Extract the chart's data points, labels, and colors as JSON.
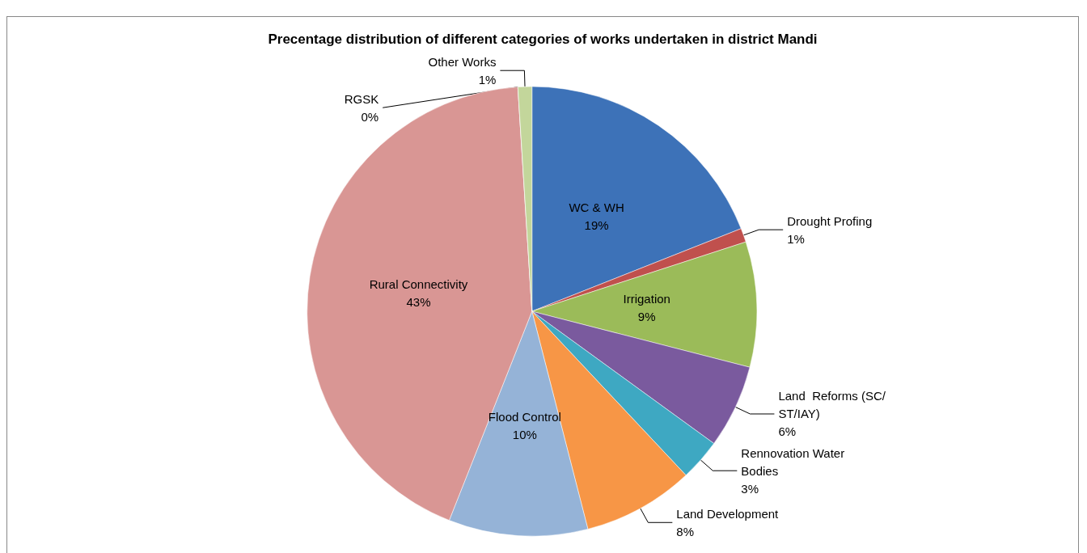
{
  "chart_data": {
    "type": "pie",
    "title": "Precentage distribution of different categories of works undertaken in district Mandi",
    "categories": [
      "WC & WH",
      "Drought Profing",
      "Irrigation",
      "Land  Reforms (SC/ST/IAY)",
      "Rennovation Water Bodies",
      "Land Development",
      "Flood Control",
      "Rural Connectivity",
      "RGSK",
      "Other Works"
    ],
    "values": [
      19,
      1,
      9,
      6,
      3,
      8,
      10,
      43,
      0,
      1
    ],
    "value_labels": [
      "19%",
      "1%",
      "9%",
      "6%",
      "3%",
      "8%",
      "10%",
      "43%",
      "0%",
      "1%"
    ],
    "colors": [
      "#3d72b8",
      "#c0504d",
      "#9bbb59",
      "#7a5a9e",
      "#3ea8c2",
      "#f79646",
      "#95b3d7",
      "#d99694",
      "#b3a2c7",
      "#c3d69b"
    ],
    "legend": false
  }
}
